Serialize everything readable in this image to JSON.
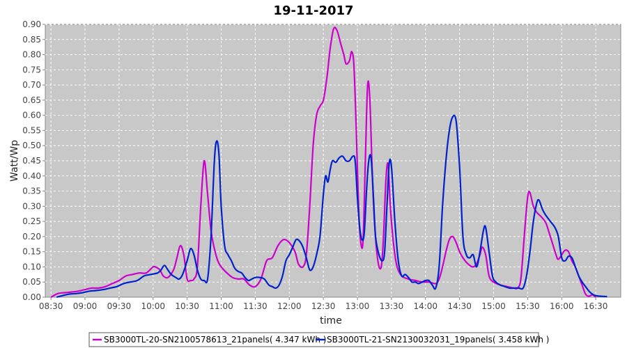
{
  "chart_data": {
    "type": "line",
    "title": "19-11-2017",
    "xlabel": "time",
    "ylabel": "Watt/Wp",
    "ylim": [
      0,
      0.9
    ],
    "xlim": [
      "08:25",
      "16:52"
    ],
    "grid": true,
    "legend_placement": "bottom",
    "x_tick_labels": [
      "08:30",
      "09:00",
      "09:30",
      "10:00",
      "10:30",
      "11:00",
      "11:30",
      "12:00",
      "12:30",
      "13:00",
      "13:30",
      "14:00",
      "14:30",
      "15:00",
      "15:30",
      "16:00",
      "16:30"
    ],
    "y_tick_labels": [
      "0.00",
      "0.05",
      "0.10",
      "0.15",
      "0.20",
      "0.25",
      "0.30",
      "0.35",
      "0.40",
      "0.45",
      "0.50",
      "0.55",
      "0.60",
      "0.65",
      "0.70",
      "0.75",
      "0.80",
      "0.85",
      "0.90"
    ],
    "series": [
      {
        "name": "SB3000TL-20-SN2100578613_21panels( 4.347 kWh )",
        "color": "#cc00cc",
        "points": [
          [
            "08:30",
            0.0
          ],
          [
            "08:36",
            0.012
          ],
          [
            "08:42",
            0.015
          ],
          [
            "08:48",
            0.017
          ],
          [
            "08:54",
            0.02
          ],
          [
            "09:00",
            0.025
          ],
          [
            "09:06",
            0.03
          ],
          [
            "09:12",
            0.03
          ],
          [
            "09:18",
            0.035
          ],
          [
            "09:24",
            0.045
          ],
          [
            "09:30",
            0.055
          ],
          [
            "09:36",
            0.07
          ],
          [
            "09:42",
            0.075
          ],
          [
            "09:48",
            0.08
          ],
          [
            "09:54",
            0.08
          ],
          [
            "10:00",
            0.1
          ],
          [
            "10:03",
            0.098
          ],
          [
            "10:06",
            0.09
          ],
          [
            "10:09",
            0.07
          ],
          [
            "10:13",
            0.065
          ],
          [
            "10:18",
            0.09
          ],
          [
            "10:21",
            0.13
          ],
          [
            "10:24",
            0.17
          ],
          [
            "10:27",
            0.14
          ],
          [
            "10:30",
            0.06
          ],
          [
            "10:33",
            0.055
          ],
          [
            "10:36",
            0.06
          ],
          [
            "10:39",
            0.1
          ],
          [
            "10:42",
            0.3
          ],
          [
            "10:45",
            0.45
          ],
          [
            "10:48",
            0.34
          ],
          [
            "10:51",
            0.22
          ],
          [
            "10:54",
            0.16
          ],
          [
            "10:57",
            0.12
          ],
          [
            "11:00",
            0.1
          ],
          [
            "11:05",
            0.08
          ],
          [
            "11:10",
            0.065
          ],
          [
            "11:15",
            0.06
          ],
          [
            "11:20",
            0.06
          ],
          [
            "11:25",
            0.04
          ],
          [
            "11:30",
            0.035
          ],
          [
            "11:35",
            0.06
          ],
          [
            "11:40",
            0.12
          ],
          [
            "11:45",
            0.13
          ],
          [
            "11:50",
            0.17
          ],
          [
            "11:55",
            0.19
          ],
          [
            "12:00",
            0.18
          ],
          [
            "12:05",
            0.15
          ],
          [
            "12:08",
            0.11
          ],
          [
            "12:12",
            0.1
          ],
          [
            "12:15",
            0.14
          ],
          [
            "12:18",
            0.3
          ],
          [
            "12:21",
            0.5
          ],
          [
            "12:24",
            0.6
          ],
          [
            "12:27",
            0.63
          ],
          [
            "12:30",
            0.65
          ],
          [
            "12:33",
            0.72
          ],
          [
            "12:36",
            0.82
          ],
          [
            "12:39",
            0.885
          ],
          [
            "12:42",
            0.88
          ],
          [
            "12:45",
            0.84
          ],
          [
            "12:48",
            0.8
          ],
          [
            "12:50",
            0.77
          ],
          [
            "12:53",
            0.78
          ],
          [
            "12:55",
            0.81
          ],
          [
            "12:57",
            0.76
          ],
          [
            "12:59",
            0.55
          ],
          [
            "13:01",
            0.3
          ],
          [
            "13:03",
            0.18
          ],
          [
            "13:05",
            0.19
          ],
          [
            "13:07",
            0.45
          ],
          [
            "13:09",
            0.7
          ],
          [
            "13:11",
            0.65
          ],
          [
            "13:13",
            0.42
          ],
          [
            "13:15",
            0.25
          ],
          [
            "13:18",
            0.12
          ],
          [
            "13:21",
            0.1
          ],
          [
            "13:23",
            0.2
          ],
          [
            "13:25",
            0.38
          ],
          [
            "13:27",
            0.44
          ],
          [
            "13:29",
            0.3
          ],
          [
            "13:32",
            0.17
          ],
          [
            "13:35",
            0.1
          ],
          [
            "13:39",
            0.07
          ],
          [
            "13:45",
            0.06
          ],
          [
            "13:51",
            0.055
          ],
          [
            "13:57",
            0.05
          ],
          [
            "14:03",
            0.05
          ],
          [
            "14:09",
            0.045
          ],
          [
            "14:12",
            0.06
          ],
          [
            "14:15",
            0.1
          ],
          [
            "14:18",
            0.15
          ],
          [
            "14:21",
            0.19
          ],
          [
            "14:24",
            0.2
          ],
          [
            "14:27",
            0.18
          ],
          [
            "14:30",
            0.15
          ],
          [
            "14:33",
            0.13
          ],
          [
            "14:36",
            0.115
          ],
          [
            "14:39",
            0.105
          ],
          [
            "14:42",
            0.1
          ],
          [
            "14:45",
            0.11
          ],
          [
            "14:48",
            0.14
          ],
          [
            "14:50",
            0.165
          ],
          [
            "14:53",
            0.14
          ],
          [
            "14:56",
            0.07
          ],
          [
            "15:00",
            0.05
          ],
          [
            "15:06",
            0.04
          ],
          [
            "15:12",
            0.035
          ],
          [
            "15:18",
            0.03
          ],
          [
            "15:21",
            0.03
          ],
          [
            "15:24",
            0.06
          ],
          [
            "15:27",
            0.2
          ],
          [
            "15:30",
            0.33
          ],
          [
            "15:32",
            0.345
          ],
          [
            "15:35",
            0.3
          ],
          [
            "15:38",
            0.28
          ],
          [
            "15:42",
            0.265
          ],
          [
            "15:46",
            0.245
          ],
          [
            "15:50",
            0.2
          ],
          [
            "15:55",
            0.14
          ],
          [
            "15:57",
            0.125
          ],
          [
            "16:00",
            0.14
          ],
          [
            "16:03",
            0.155
          ],
          [
            "16:06",
            0.15
          ],
          [
            "16:09",
            0.12
          ],
          [
            "16:12",
            0.1
          ],
          [
            "16:15",
            0.07
          ],
          [
            "16:18",
            0.04
          ],
          [
            "16:21",
            0.01
          ],
          [
            "16:24",
            0.003
          ],
          [
            "16:27",
            0.008
          ],
          [
            "16:30",
            0.0
          ]
        ]
      },
      {
        "name": "SB3000TL-21-SN2130032031_19panels( 3.458 kWh )",
        "color": "#0022cc",
        "points": [
          [
            "08:35",
            0.0
          ],
          [
            "08:40",
            0.005
          ],
          [
            "08:46",
            0.01
          ],
          [
            "08:52",
            0.012
          ],
          [
            "08:58",
            0.015
          ],
          [
            "09:04",
            0.02
          ],
          [
            "09:10",
            0.022
          ],
          [
            "09:16",
            0.025
          ],
          [
            "09:22",
            0.03
          ],
          [
            "09:28",
            0.035
          ],
          [
            "09:34",
            0.045
          ],
          [
            "09:40",
            0.05
          ],
          [
            "09:46",
            0.055
          ],
          [
            "09:52",
            0.07
          ],
          [
            "09:58",
            0.075
          ],
          [
            "10:04",
            0.08
          ],
          [
            "10:07",
            0.09
          ],
          [
            "10:10",
            0.105
          ],
          [
            "10:13",
            0.09
          ],
          [
            "10:16",
            0.075
          ],
          [
            "10:20",
            0.065
          ],
          [
            "10:23",
            0.06
          ],
          [
            "10:26",
            0.075
          ],
          [
            "10:30",
            0.12
          ],
          [
            "10:33",
            0.16
          ],
          [
            "10:36",
            0.14
          ],
          [
            "10:39",
            0.09
          ],
          [
            "10:42",
            0.06
          ],
          [
            "10:45",
            0.055
          ],
          [
            "10:48",
            0.06
          ],
          [
            "10:51",
            0.2
          ],
          [
            "10:54",
            0.45
          ],
          [
            "10:56",
            0.515
          ],
          [
            "10:58",
            0.47
          ],
          [
            "11:00",
            0.3
          ],
          [
            "11:03",
            0.17
          ],
          [
            "11:06",
            0.14
          ],
          [
            "11:09",
            0.12
          ],
          [
            "11:12",
            0.095
          ],
          [
            "11:15",
            0.085
          ],
          [
            "11:18",
            0.08
          ],
          [
            "11:21",
            0.065
          ],
          [
            "11:24",
            0.055
          ],
          [
            "11:27",
            0.06
          ],
          [
            "11:30",
            0.065
          ],
          [
            "11:34",
            0.065
          ],
          [
            "11:38",
            0.06
          ],
          [
            "11:42",
            0.04
          ],
          [
            "11:45",
            0.035
          ],
          [
            "11:48",
            0.03
          ],
          [
            "11:51",
            0.04
          ],
          [
            "11:54",
            0.07
          ],
          [
            "11:57",
            0.12
          ],
          [
            "12:00",
            0.14
          ],
          [
            "12:03",
            0.165
          ],
          [
            "12:06",
            0.19
          ],
          [
            "12:09",
            0.185
          ],
          [
            "12:12",
            0.165
          ],
          [
            "12:15",
            0.13
          ],
          [
            "12:18",
            0.09
          ],
          [
            "12:21",
            0.1
          ],
          [
            "12:24",
            0.14
          ],
          [
            "12:27",
            0.2
          ],
          [
            "12:30",
            0.34
          ],
          [
            "12:32",
            0.4
          ],
          [
            "12:34",
            0.38
          ],
          [
            "12:36",
            0.42
          ],
          [
            "12:38",
            0.45
          ],
          [
            "12:41",
            0.445
          ],
          [
            "12:44",
            0.46
          ],
          [
            "12:47",
            0.465
          ],
          [
            "12:50",
            0.45
          ],
          [
            "12:53",
            0.45
          ],
          [
            "12:56",
            0.465
          ],
          [
            "12:58",
            0.45
          ],
          [
            "13:00",
            0.33
          ],
          [
            "13:02",
            0.23
          ],
          [
            "13:04",
            0.19
          ],
          [
            "13:06",
            0.21
          ],
          [
            "13:08",
            0.35
          ],
          [
            "13:10",
            0.45
          ],
          [
            "13:12",
            0.46
          ],
          [
            "13:14",
            0.34
          ],
          [
            "13:16",
            0.2
          ],
          [
            "13:19",
            0.14
          ],
          [
            "13:22",
            0.12
          ],
          [
            "13:24",
            0.15
          ],
          [
            "13:26",
            0.3
          ],
          [
            "13:28",
            0.44
          ],
          [
            "13:30",
            0.43
          ],
          [
            "13:33",
            0.25
          ],
          [
            "13:36",
            0.12
          ],
          [
            "13:39",
            0.07
          ],
          [
            "13:42",
            0.075
          ],
          [
            "13:45",
            0.065
          ],
          [
            "13:48",
            0.05
          ],
          [
            "13:51",
            0.05
          ],
          [
            "13:54",
            0.045
          ],
          [
            "13:57",
            0.05
          ],
          [
            "14:00",
            0.055
          ],
          [
            "14:03",
            0.055
          ],
          [
            "14:06",
            0.04
          ],
          [
            "14:09",
            0.03
          ],
          [
            "14:12",
            0.1
          ],
          [
            "14:15",
            0.3
          ],
          [
            "14:18",
            0.45
          ],
          [
            "14:21",
            0.55
          ],
          [
            "14:24",
            0.595
          ],
          [
            "14:27",
            0.58
          ],
          [
            "14:30",
            0.43
          ],
          [
            "14:33",
            0.2
          ],
          [
            "14:36",
            0.14
          ],
          [
            "14:39",
            0.13
          ],
          [
            "14:42",
            0.14
          ],
          [
            "14:45",
            0.1
          ],
          [
            "14:48",
            0.15
          ],
          [
            "14:51",
            0.22
          ],
          [
            "14:53",
            0.23
          ],
          [
            "14:56",
            0.15
          ],
          [
            "14:59",
            0.07
          ],
          [
            "15:02",
            0.05
          ],
          [
            "15:06",
            0.04
          ],
          [
            "15:10",
            0.035
          ],
          [
            "15:14",
            0.03
          ],
          [
            "15:18",
            0.03
          ],
          [
            "15:22",
            0.03
          ],
          [
            "15:26",
            0.03
          ],
          [
            "15:29",
            0.07
          ],
          [
            "15:32",
            0.15
          ],
          [
            "15:35",
            0.25
          ],
          [
            "15:38",
            0.31
          ],
          [
            "15:40",
            0.32
          ],
          [
            "15:43",
            0.29
          ],
          [
            "15:46",
            0.27
          ],
          [
            "15:50",
            0.25
          ],
          [
            "15:54",
            0.23
          ],
          [
            "15:57",
            0.2
          ],
          [
            "16:00",
            0.13
          ],
          [
            "16:03",
            0.12
          ],
          [
            "16:06",
            0.135
          ],
          [
            "16:09",
            0.13
          ],
          [
            "16:12",
            0.1
          ],
          [
            "16:15",
            0.07
          ],
          [
            "16:18",
            0.05
          ],
          [
            "16:21",
            0.035
          ],
          [
            "16:24",
            0.02
          ],
          [
            "16:27",
            0.01
          ],
          [
            "16:30",
            0.005
          ],
          [
            "16:35",
            0.003
          ],
          [
            "16:40",
            0.002
          ]
        ]
      }
    ]
  }
}
